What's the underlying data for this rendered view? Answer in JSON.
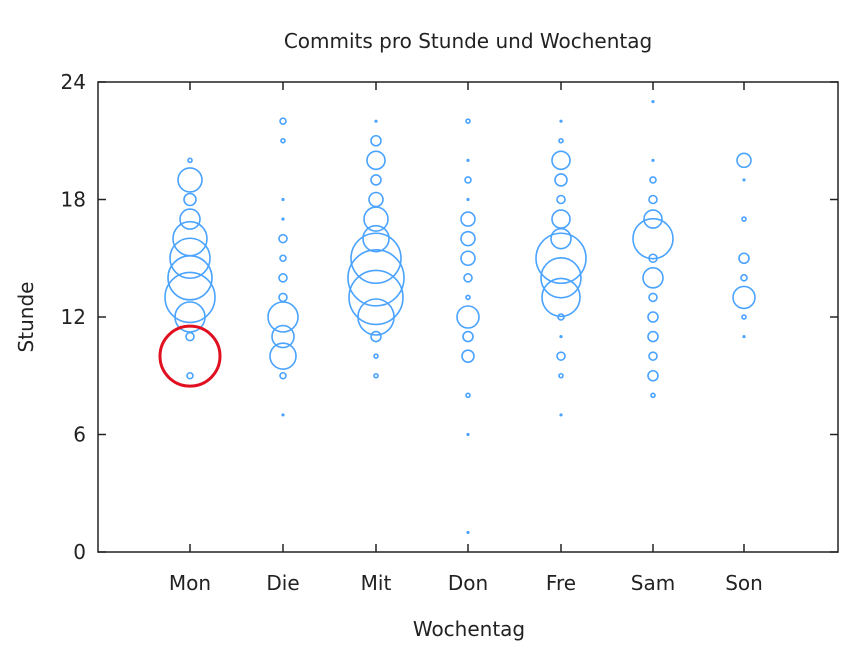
{
  "chart_data": {
    "type": "scatter",
    "title": "Commits pro Stunde und Wochentag",
    "xlabel": "Wochentag",
    "ylabel": "Stunde",
    "categories": [
      "Mon",
      "Die",
      "Mit",
      "Don",
      "Fre",
      "Sam",
      "Son"
    ],
    "ylim": [
      0,
      24
    ],
    "yticks": [
      "0",
      "6",
      "12",
      "18",
      "24"
    ],
    "grid": false,
    "legend": "none",
    "marker_size_unit": "relative commit count (bubble radius)",
    "series": [
      {
        "color": "#4aa3ff",
        "points": [
          {
            "x": "Mon",
            "y": 20,
            "size": 2
          },
          {
            "x": "Mon",
            "y": 19,
            "size": 12
          },
          {
            "x": "Mon",
            "y": 18,
            "size": 6
          },
          {
            "x": "Mon",
            "y": 17,
            "size": 10
          },
          {
            "x": "Mon",
            "y": 16,
            "size": 17
          },
          {
            "x": "Mon",
            "y": 15,
            "size": 20
          },
          {
            "x": "Mon",
            "y": 14,
            "size": 22
          },
          {
            "x": "Mon",
            "y": 13,
            "size": 25
          },
          {
            "x": "Mon",
            "y": 12,
            "size": 15
          },
          {
            "x": "Mon",
            "y": 11,
            "size": 4
          },
          {
            "x": "Mon",
            "y": 9,
            "size": 3
          },
          {
            "x": "Die",
            "y": 22,
            "size": 3
          },
          {
            "x": "Die",
            "y": 21,
            "size": 2
          },
          {
            "x": "Die",
            "y": 18,
            "size": 1
          },
          {
            "x": "Die",
            "y": 17,
            "size": 1
          },
          {
            "x": "Die",
            "y": 16,
            "size": 4
          },
          {
            "x": "Die",
            "y": 15,
            "size": 3
          },
          {
            "x": "Die",
            "y": 14,
            "size": 4
          },
          {
            "x": "Die",
            "y": 13,
            "size": 4
          },
          {
            "x": "Die",
            "y": 12,
            "size": 15
          },
          {
            "x": "Die",
            "y": 11,
            "size": 11
          },
          {
            "x": "Die",
            "y": 10,
            "size": 13
          },
          {
            "x": "Die",
            "y": 9,
            "size": 3
          },
          {
            "x": "Die",
            "y": 7,
            "size": 1
          },
          {
            "x": "Mit",
            "y": 22,
            "size": 1
          },
          {
            "x": "Mit",
            "y": 21,
            "size": 5
          },
          {
            "x": "Mit",
            "y": 20,
            "size": 9
          },
          {
            "x": "Mit",
            "y": 19,
            "size": 5
          },
          {
            "x": "Mit",
            "y": 18,
            "size": 7
          },
          {
            "x": "Mit",
            "y": 17,
            "size": 12
          },
          {
            "x": "Mit",
            "y": 16,
            "size": 13
          },
          {
            "x": "Mit",
            "y": 15,
            "size": 25
          },
          {
            "x": "Mit",
            "y": 14,
            "size": 28
          },
          {
            "x": "Mit",
            "y": 13,
            "size": 27
          },
          {
            "x": "Mit",
            "y": 12,
            "size": 18
          },
          {
            "x": "Mit",
            "y": 11,
            "size": 5
          },
          {
            "x": "Mit",
            "y": 10,
            "size": 2
          },
          {
            "x": "Mit",
            "y": 9,
            "size": 2
          },
          {
            "x": "Don",
            "y": 22,
            "size": 2
          },
          {
            "x": "Don",
            "y": 20,
            "size": 1
          },
          {
            "x": "Don",
            "y": 19,
            "size": 3
          },
          {
            "x": "Don",
            "y": 18,
            "size": 1
          },
          {
            "x": "Don",
            "y": 17,
            "size": 7
          },
          {
            "x": "Don",
            "y": 16,
            "size": 7
          },
          {
            "x": "Don",
            "y": 15,
            "size": 7
          },
          {
            "x": "Don",
            "y": 14,
            "size": 4
          },
          {
            "x": "Don",
            "y": 13,
            "size": 2
          },
          {
            "x": "Don",
            "y": 12,
            "size": 11
          },
          {
            "x": "Don",
            "y": 11,
            "size": 5
          },
          {
            "x": "Don",
            "y": 10,
            "size": 6
          },
          {
            "x": "Don",
            "y": 8,
            "size": 2
          },
          {
            "x": "Don",
            "y": 6,
            "size": 1
          },
          {
            "x": "Don",
            "y": 1,
            "size": 1
          },
          {
            "x": "Fre",
            "y": 22,
            "size": 1
          },
          {
            "x": "Fre",
            "y": 21,
            "size": 2
          },
          {
            "x": "Fre",
            "y": 20,
            "size": 9
          },
          {
            "x": "Fre",
            "y": 19,
            "size": 6
          },
          {
            "x": "Fre",
            "y": 18,
            "size": 4
          },
          {
            "x": "Fre",
            "y": 17,
            "size": 9
          },
          {
            "x": "Fre",
            "y": 16,
            "size": 10
          },
          {
            "x": "Fre",
            "y": 15,
            "size": 25
          },
          {
            "x": "Fre",
            "y": 14,
            "size": 20
          },
          {
            "x": "Fre",
            "y": 13,
            "size": 19
          },
          {
            "x": "Fre",
            "y": 12,
            "size": 3
          },
          {
            "x": "Fre",
            "y": 11,
            "size": 1
          },
          {
            "x": "Fre",
            "y": 10,
            "size": 4
          },
          {
            "x": "Fre",
            "y": 9,
            "size": 2
          },
          {
            "x": "Fre",
            "y": 7,
            "size": 1
          },
          {
            "x": "Sam",
            "y": 23,
            "size": 1
          },
          {
            "x": "Sam",
            "y": 20,
            "size": 1
          },
          {
            "x": "Sam",
            "y": 19,
            "size": 3
          },
          {
            "x": "Sam",
            "y": 18,
            "size": 4
          },
          {
            "x": "Sam",
            "y": 17,
            "size": 9
          },
          {
            "x": "Sam",
            "y": 16,
            "size": 20
          },
          {
            "x": "Sam",
            "y": 15,
            "size": 4
          },
          {
            "x": "Sam",
            "y": 14,
            "size": 10
          },
          {
            "x": "Sam",
            "y": 13,
            "size": 4
          },
          {
            "x": "Sam",
            "y": 12,
            "size": 5
          },
          {
            "x": "Sam",
            "y": 11,
            "size": 5
          },
          {
            "x": "Sam",
            "y": 10,
            "size": 4
          },
          {
            "x": "Sam",
            "y": 9,
            "size": 5
          },
          {
            "x": "Sam",
            "y": 8,
            "size": 2
          },
          {
            "x": "Son",
            "y": 20,
            "size": 7
          },
          {
            "x": "Son",
            "y": 19,
            "size": 1
          },
          {
            "x": "Son",
            "y": 17,
            "size": 2
          },
          {
            "x": "Son",
            "y": 15,
            "size": 5
          },
          {
            "x": "Son",
            "y": 14,
            "size": 3
          },
          {
            "x": "Son",
            "y": 13,
            "size": 11
          },
          {
            "x": "Son",
            "y": 12,
            "size": 2
          },
          {
            "x": "Son",
            "y": 11,
            "size": 1
          }
        ]
      }
    ],
    "annotations": [
      {
        "type": "circle",
        "x": "Mon",
        "y": 10,
        "size": 30,
        "color": "#e01020"
      }
    ]
  }
}
